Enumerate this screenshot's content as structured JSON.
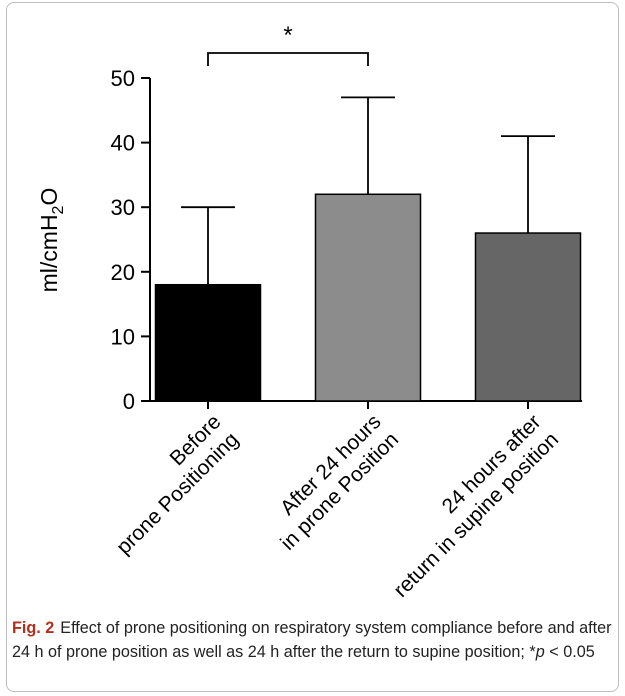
{
  "chart_data": {
    "type": "bar",
    "title": "",
    "xlabel": "",
    "ylabel": "ml/cmH2O",
    "ylabel_parts": [
      "ml/cmH",
      "2",
      "O"
    ],
    "ylim": [
      0,
      50
    ],
    "yticks": [
      0,
      10,
      20,
      30,
      40,
      50
    ],
    "grid": false,
    "categories": [
      [
        "Before",
        "prone Positioning"
      ],
      [
        "After 24 hours",
        "in prone Position"
      ],
      [
        "24 hours after",
        "return in supine position"
      ]
    ],
    "values": [
      18,
      32,
      26
    ],
    "error_upper": [
      30,
      47,
      41
    ],
    "colors": [
      "#000000",
      "#8c8c8c",
      "#666666"
    ],
    "significance": {
      "between": [
        0,
        1
      ],
      "label": "*"
    }
  },
  "caption": {
    "label": "Fig. 2",
    "text_part1": "Effect of prone positioning on respiratory system compliance before and after 24 h of prone position as well as 24 h after the return to supine position; *",
    "p_symbol": "p",
    "text_part2": " < 0.05"
  }
}
